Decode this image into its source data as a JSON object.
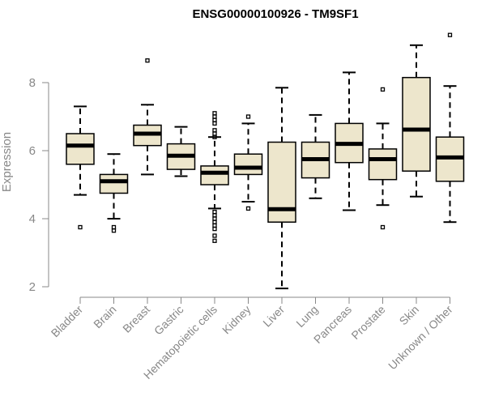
{
  "chart_data": {
    "type": "boxplot",
    "title": "ENSG00000100926 - TM9SF1",
    "xlabel": "",
    "ylabel": "Expression",
    "ylim": [
      2,
      9.4
    ],
    "yticks": [
      2,
      4,
      6,
      8
    ],
    "colors": {
      "box_fill": "#ede6cc",
      "stroke": "#000000",
      "axis": "#888888"
    },
    "categories": [
      "Bladder",
      "Brain",
      "Breast",
      "Gastric",
      "Hematopoietic cells",
      "Kidney",
      "Liver",
      "Lung",
      "Pancreas",
      "Prostate",
      "Skin",
      "Unknown / Other"
    ],
    "boxes": [
      {
        "name": "Bladder",
        "whisker_low": 4.7,
        "q1": 5.6,
        "median": 6.15,
        "q3": 6.5,
        "whisker_high": 7.3,
        "outliers": [
          3.75
        ]
      },
      {
        "name": "Brain",
        "whisker_low": 4.0,
        "q1": 4.75,
        "median": 5.1,
        "q3": 5.3,
        "whisker_high": 5.9,
        "outliers": [
          3.75,
          3.65
        ]
      },
      {
        "name": "Breast",
        "whisker_low": 5.3,
        "q1": 6.15,
        "median": 6.5,
        "q3": 6.75,
        "whisker_high": 7.35,
        "outliers": [
          8.65
        ]
      },
      {
        "name": "Gastric",
        "whisker_low": 5.25,
        "q1": 5.45,
        "median": 5.85,
        "q3": 6.2,
        "whisker_high": 6.7,
        "outliers": []
      },
      {
        "name": "Hematopoietic cells",
        "whisker_low": 4.3,
        "q1": 5.0,
        "median": 5.35,
        "q3": 5.55,
        "whisker_high": 6.4,
        "outliers": [
          7.1,
          7.0,
          6.9,
          6.8,
          6.6,
          6.5,
          6.4,
          4.2,
          4.1,
          4.0,
          3.9,
          3.8,
          3.7,
          3.5,
          3.35
        ]
      },
      {
        "name": "Kidney",
        "whisker_low": 4.5,
        "q1": 5.3,
        "median": 5.5,
        "q3": 5.9,
        "whisker_high": 6.8,
        "outliers": [
          7.0,
          4.3
        ]
      },
      {
        "name": "Liver",
        "whisker_low": 1.95,
        "q1": 3.9,
        "median": 4.28,
        "q3": 6.25,
        "whisker_high": 7.85,
        "outliers": []
      },
      {
        "name": "Lung",
        "whisker_low": 4.6,
        "q1": 5.2,
        "median": 5.75,
        "q3": 6.25,
        "whisker_high": 7.05,
        "outliers": []
      },
      {
        "name": "Pancreas",
        "whisker_low": 4.25,
        "q1": 5.65,
        "median": 6.2,
        "q3": 6.8,
        "whisker_high": 8.3,
        "outliers": []
      },
      {
        "name": "Prostate",
        "whisker_low": 4.4,
        "q1": 5.15,
        "median": 5.75,
        "q3": 6.05,
        "whisker_high": 6.8,
        "outliers": [
          7.8,
          3.75
        ]
      },
      {
        "name": "Skin",
        "whisker_low": 4.65,
        "q1": 5.4,
        "median": 6.62,
        "q3": 8.15,
        "whisker_high": 9.1,
        "outliers": []
      },
      {
        "name": "Unknown / Other",
        "whisker_low": 3.9,
        "q1": 5.1,
        "median": 5.8,
        "q3": 6.4,
        "whisker_high": 7.9,
        "outliers": [
          9.4
        ]
      }
    ]
  }
}
